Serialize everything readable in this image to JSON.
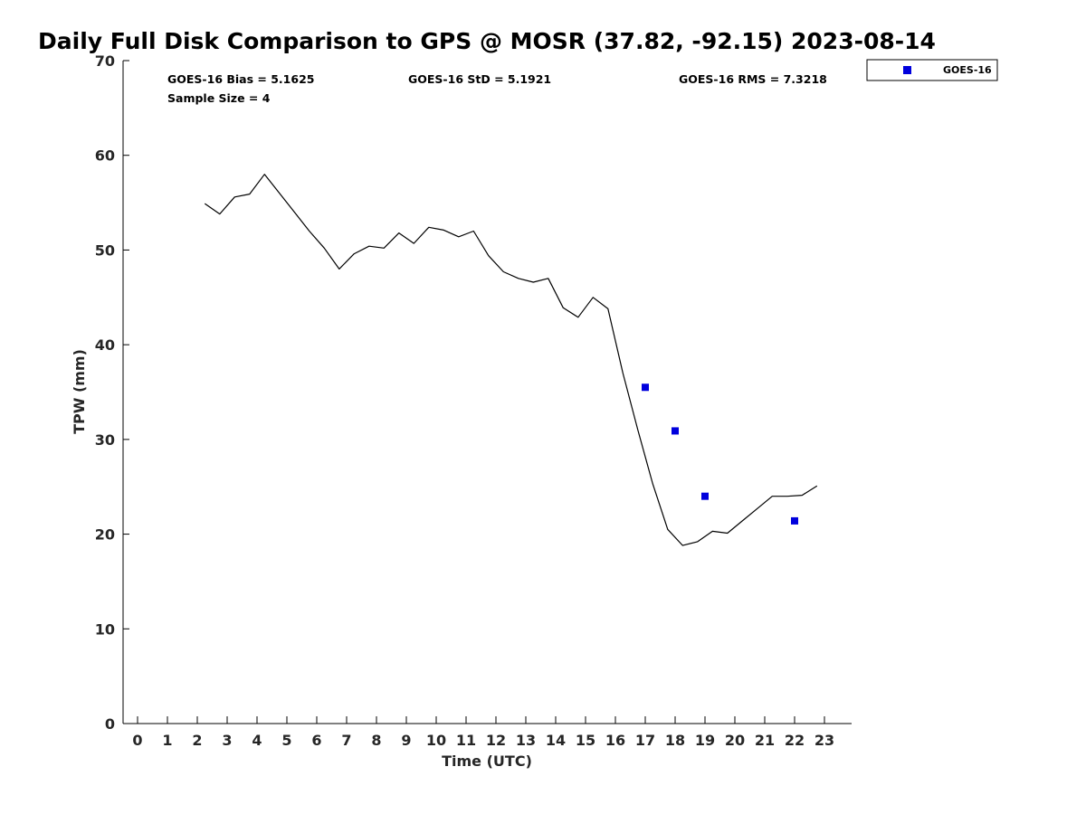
{
  "chart_data": {
    "type": "line",
    "title": "Daily Full Disk Comparison to GPS @ MOSR (37.82, -92.15) 2023-08-14",
    "xlabel": "Time (UTC)",
    "ylabel": "TPW (mm)",
    "xlim": [
      -0.5,
      23.8
    ],
    "ylim": [
      0,
      70
    ],
    "xticks": [
      "0",
      "1",
      "2",
      "3",
      "4",
      "5",
      "6",
      "7",
      "8",
      "9",
      "10",
      "11",
      "12",
      "13",
      "14",
      "15",
      "16",
      "17",
      "18",
      "19",
      "20",
      "21",
      "22",
      "23"
    ],
    "yticks": [
      "0",
      "10",
      "20",
      "30",
      "40",
      "50",
      "60",
      "70"
    ],
    "grid": false,
    "stats": {
      "bias": "GOES-16 Bias = 5.1625",
      "std": "GOES-16 StD = 5.1921",
      "rms": "GOES-16 RMS = 7.3218",
      "sample": "Sample Size = 4"
    },
    "legend": {
      "position": "top-right",
      "entries": [
        "GOES-16"
      ]
    },
    "series": [
      {
        "kind": "line",
        "color": "#000000",
        "x": [
          2.25,
          2.75,
          3.25,
          3.75,
          4.25,
          4.75,
          5.25,
          5.75,
          6.25,
          6.75,
          7.25,
          7.75,
          8.25,
          8.75,
          9.25,
          9.75,
          10.25,
          10.75,
          11.25,
          11.75,
          12.25,
          12.75,
          13.25,
          13.75,
          14.25,
          14.75,
          15.25,
          15.75,
          16.25,
          16.75,
          17.25,
          17.75,
          18.25,
          18.75,
          19.25,
          19.75,
          20.25,
          20.75,
          21.25,
          21.75,
          22.25,
          22.75
        ],
        "y": [
          54.9,
          53.8,
          55.6,
          55.9,
          58.0,
          56.0,
          54.0,
          52.0,
          50.2,
          48.0,
          49.6,
          50.4,
          50.2,
          51.8,
          50.7,
          52.4,
          52.1,
          51.4,
          52.0,
          49.4,
          47.7,
          47.0,
          46.6,
          47.0,
          43.9,
          42.9,
          45.0,
          43.8,
          37.0,
          31.0,
          25.3,
          20.5,
          18.8,
          19.2,
          20.3,
          20.1,
          21.4,
          22.7,
          24.0,
          24.0,
          24.1,
          25.1
        ]
      },
      {
        "name": "GOES-16",
        "kind": "scatter",
        "color": "#0000dd",
        "x": [
          17,
          18,
          19,
          22
        ],
        "y": [
          35.5,
          30.9,
          24.0,
          21.4
        ]
      }
    ]
  }
}
